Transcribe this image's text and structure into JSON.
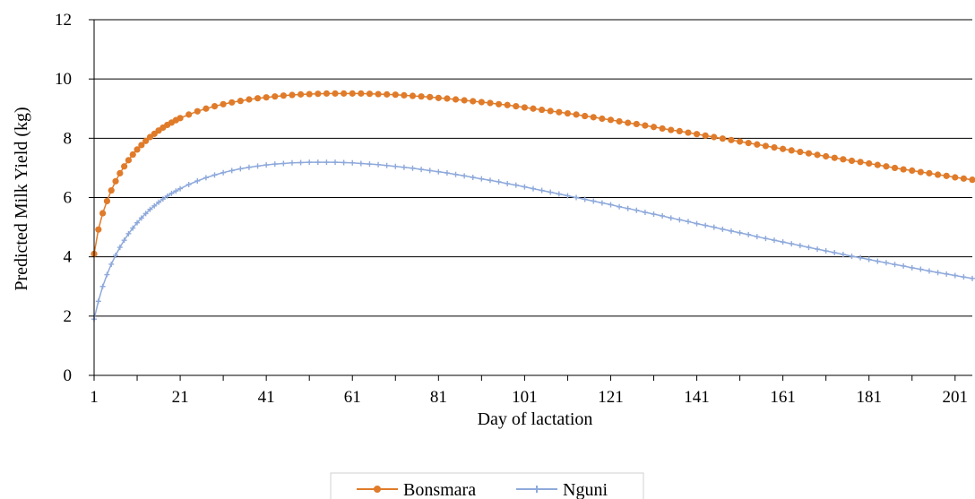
{
  "chart_data": {
    "type": "line",
    "title": "",
    "xlabel": "Day of lactation",
    "ylabel": "Predicted Milk Yield (kg)",
    "xlim": [
      1,
      205
    ],
    "ylim": [
      0,
      12
    ],
    "yticks": [
      0,
      2,
      4,
      6,
      8,
      10,
      12
    ],
    "xticks": [
      1,
      21,
      41,
      61,
      81,
      101,
      121,
      141,
      161,
      181,
      201
    ],
    "grid": "horizontal",
    "legend_position": "bottom",
    "series": [
      {
        "name": "Bonsmara",
        "color": "#E07B2A",
        "marker": "circle",
        "x": [
          1,
          2,
          3,
          4,
          5,
          6,
          7,
          8,
          9,
          10,
          11,
          12,
          13,
          14,
          15,
          16,
          17,
          18,
          19,
          20,
          21,
          23,
          25,
          27,
          29,
          31,
          33,
          35,
          37,
          39,
          41,
          43,
          45,
          47,
          49,
          51,
          53,
          55,
          57,
          59,
          61,
          63,
          65,
          67,
          69,
          71,
          73,
          75,
          77,
          79,
          81,
          83,
          85,
          87,
          89,
          91,
          93,
          95,
          97,
          99,
          101,
          103,
          105,
          107,
          109,
          111,
          113,
          115,
          117,
          119,
          121,
          123,
          125,
          127,
          129,
          131,
          133,
          135,
          137,
          139,
          141,
          143,
          145,
          147,
          149,
          151,
          153,
          155,
          157,
          159,
          161,
          163,
          165,
          167,
          169,
          171,
          173,
          175,
          177,
          179,
          181,
          183,
          185,
          187,
          189,
          191,
          193,
          195,
          197,
          199,
          201,
          203,
          205
        ],
        "y": [
          4.1,
          4.92,
          5.47,
          5.88,
          6.24,
          6.55,
          6.82,
          7.05,
          7.26,
          7.45,
          7.62,
          7.77,
          7.91,
          8.04,
          8.15,
          8.26,
          8.36,
          8.45,
          8.53,
          8.61,
          8.68,
          8.8,
          8.91,
          9.0,
          9.08,
          9.15,
          9.21,
          9.26,
          9.31,
          9.35,
          9.38,
          9.41,
          9.44,
          9.46,
          9.48,
          9.49,
          9.5,
          9.51,
          9.51,
          9.51,
          9.51,
          9.51,
          9.5,
          9.49,
          9.48,
          9.47,
          9.45,
          9.43,
          9.41,
          9.39,
          9.36,
          9.34,
          9.31,
          9.28,
          9.25,
          9.22,
          9.19,
          9.15,
          9.12,
          9.08,
          9.04,
          9.0,
          8.96,
          8.92,
          8.88,
          8.84,
          8.8,
          8.75,
          8.71,
          8.66,
          8.62,
          8.57,
          8.52,
          8.48,
          8.43,
          8.38,
          8.33,
          8.28,
          8.24,
          8.19,
          8.14,
          8.09,
          8.04,
          7.99,
          7.94,
          7.89,
          7.84,
          7.79,
          7.74,
          7.69,
          7.64,
          7.59,
          7.54,
          7.49,
          7.44,
          7.39,
          7.34,
          7.29,
          7.24,
          7.2,
          7.15,
          7.1,
          7.05,
          7.0,
          6.95,
          6.91,
          6.86,
          6.82,
          6.77,
          6.73,
          6.68,
          6.64,
          6.6
        ]
      },
      {
        "name": "Nguni",
        "color": "#8EA9DB",
        "marker": "plus",
        "x": [
          1,
          2,
          3,
          4,
          5,
          6,
          7,
          8,
          9,
          10,
          11,
          12,
          13,
          14,
          15,
          16,
          17,
          18,
          19,
          20,
          21,
          23,
          25,
          27,
          29,
          31,
          33,
          35,
          37,
          39,
          41,
          43,
          45,
          47,
          49,
          51,
          53,
          55,
          57,
          59,
          61,
          63,
          65,
          67,
          69,
          71,
          73,
          75,
          77,
          79,
          81,
          83,
          85,
          87,
          89,
          91,
          93,
          95,
          97,
          99,
          101,
          103,
          105,
          107,
          109,
          111,
          113,
          115,
          117,
          119,
          121,
          123,
          125,
          127,
          129,
          131,
          133,
          135,
          137,
          139,
          141,
          143,
          145,
          147,
          149,
          151,
          153,
          155,
          157,
          159,
          161,
          163,
          165,
          167,
          169,
          171,
          173,
          175,
          177,
          179,
          181,
          183,
          185,
          187,
          189,
          191,
          193,
          195,
          197,
          199,
          201,
          203,
          205
        ],
        "y": [
          1.9,
          2.5,
          3.0,
          3.4,
          3.75,
          4.05,
          4.32,
          4.56,
          4.78,
          4.97,
          5.15,
          5.31,
          5.46,
          5.6,
          5.72,
          5.84,
          5.95,
          6.05,
          6.14,
          6.22,
          6.3,
          6.44,
          6.56,
          6.67,
          6.76,
          6.84,
          6.91,
          6.97,
          7.02,
          7.06,
          7.1,
          7.13,
          7.15,
          7.17,
          7.18,
          7.19,
          7.19,
          7.19,
          7.19,
          7.18,
          7.17,
          7.15,
          7.13,
          7.11,
          7.08,
          7.05,
          7.02,
          6.99,
          6.95,
          6.91,
          6.87,
          6.83,
          6.78,
          6.73,
          6.68,
          6.63,
          6.58,
          6.53,
          6.47,
          6.42,
          6.36,
          6.3,
          6.24,
          6.18,
          6.12,
          6.06,
          6.0,
          5.94,
          5.88,
          5.82,
          5.76,
          5.69,
          5.63,
          5.57,
          5.5,
          5.44,
          5.38,
          5.31,
          5.25,
          5.19,
          5.12,
          5.06,
          5.0,
          4.93,
          4.87,
          4.81,
          4.75,
          4.68,
          4.62,
          4.56,
          4.5,
          4.44,
          4.38,
          4.32,
          4.26,
          4.2,
          4.14,
          4.08,
          4.02,
          3.97,
          3.91,
          3.85,
          3.8,
          3.74,
          3.69,
          3.63,
          3.58,
          3.52,
          3.47,
          3.42,
          3.37,
          3.32,
          3.27
        ]
      }
    ]
  }
}
